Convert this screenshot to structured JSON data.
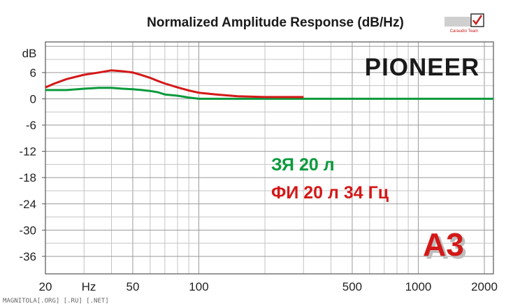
{
  "chart_data": {
    "type": "line",
    "title": "Normalized Amplitude Response (dB/Hz)",
    "xscale": "log",
    "xlim": [
      20,
      2200
    ],
    "ylim": [
      -40,
      13
    ],
    "y_unit_label": "dB",
    "x_unit_label": "Hz",
    "x_ticks": [
      20,
      50,
      100,
      500,
      1000,
      2000
    ],
    "y_ticks": [
      6,
      0,
      -6,
      -12,
      -18,
      -24,
      -30,
      -36
    ],
    "grid": true,
    "series": [
      {
        "name": "ЗЯ 20 л",
        "color": "#0a9a3c",
        "x": [
          20,
          25,
          30,
          35,
          40,
          45,
          50,
          55,
          60,
          65,
          70,
          80,
          90,
          100,
          2200
        ],
        "y": [
          2.0,
          2.0,
          2.3,
          2.5,
          2.5,
          2.3,
          2.2,
          2.0,
          1.8,
          1.5,
          1.0,
          0.7,
          0.3,
          0.0,
          0.0
        ]
      },
      {
        "name": "ФИ 20 л 34 Гц",
        "color": "#d41818",
        "x": [
          20,
          22,
          25,
          30,
          35,
          40,
          45,
          50,
          55,
          60,
          65,
          70,
          80,
          90,
          100,
          120,
          150,
          200,
          300
        ],
        "y": [
          2.6,
          3.5,
          4.5,
          5.5,
          6.0,
          6.5,
          6.3,
          6.0,
          5.4,
          4.8,
          4.1,
          3.5,
          2.6,
          1.9,
          1.4,
          1.0,
          0.6,
          0.4,
          0.4
        ]
      }
    ]
  },
  "header": {
    "brand": "PIONEER",
    "logo_text": "A3",
    "corner_logo_caption": "Caraudio Team"
  },
  "watermark": "MAGNITOLA[.ORG] [.RU] [.NET]"
}
